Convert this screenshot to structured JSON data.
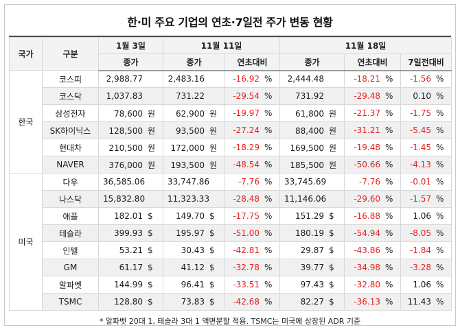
{
  "title": "한·미 주요 기업의 연초·7일전 주가 변동 현황",
  "footnote": "* 알파벳 20대 1, 테슬라 3대 1 액면분할 적용. TSMC는 미국에 상장된 ADR 기준",
  "colors": {
    "negative": "#e62020",
    "positive": "#1a1a1a"
  },
  "header": {
    "country": "국가",
    "category": "구분",
    "date1": "1월 3일",
    "date2": "11월 11일",
    "date3": "11월 18일",
    "close": "종가",
    "vs_year_start": "연초대비",
    "vs_7days_ago": "7일전대비",
    "percent_sign": "%"
  },
  "chart_data": {
    "type": "table",
    "title": "한·미 주요 기업의 연초·7일전 주가 변동 현황",
    "columns": [
      "국가",
      "구분",
      "1월 3일 종가",
      "11월 11일 종가",
      "11월 11일 연초대비(%)",
      "11월 18일 종가",
      "11월 18일 연초대비(%)",
      "11월 18일 7일전대비(%)"
    ],
    "groups": [
      {
        "country": "한국",
        "rows": [
          {
            "name": "코스피",
            "unit": "",
            "p1": "2,988.77",
            "p2": "2,483.16",
            "ytd2": "-16.92",
            "p3": "2,444.48",
            "ytd3": "-18.21",
            "d7": "-1.56"
          },
          {
            "name": "코스닥",
            "unit": "",
            "p1": "1,037.83",
            "p2": "731.22",
            "ytd2": "-29.54",
            "p3": "731.92",
            "ytd3": "-29.48",
            "d7": "0.10"
          },
          {
            "name": "삼성전자",
            "unit": "원",
            "p1": "78,600",
            "p2": "62,900",
            "ytd2": "-19.97",
            "p3": "61,800",
            "ytd3": "-21.37",
            "d7": "-1.75"
          },
          {
            "name": "SK하이닉스",
            "unit": "원",
            "p1": "128,500",
            "p2": "93,500",
            "ytd2": "-27.24",
            "p3": "88,400",
            "ytd3": "-31.21",
            "d7": "-5.45"
          },
          {
            "name": "현대차",
            "unit": "원",
            "p1": "210,500",
            "p2": "172,000",
            "ytd2": "-18.29",
            "p3": "169,500",
            "ytd3": "-19.48",
            "d7": "-1.45"
          },
          {
            "name": "NAVER",
            "unit": "원",
            "p1": "376,000",
            "p2": "193,500",
            "ytd2": "-48.54",
            "p3": "185,500",
            "ytd3": "-50.66",
            "d7": "-4.13"
          }
        ]
      },
      {
        "country": "미국",
        "rows": [
          {
            "name": "다우",
            "unit": "",
            "p1": "36,585.06",
            "p2": "33,747.86",
            "ytd2": "-7.76",
            "p3": "33,745.69",
            "ytd3": "-7.76",
            "d7": "-0.01"
          },
          {
            "name": "나스닥",
            "unit": "",
            "p1": "15,832.80",
            "p2": "11,323.33",
            "ytd2": "-28.48",
            "p3": "11,146.06",
            "ytd3": "-29.60",
            "d7": "-1.57"
          },
          {
            "name": "애플",
            "unit": "$",
            "p1": "182.01",
            "p2": "149.70",
            "ytd2": "-17.75",
            "p3": "151.29",
            "ytd3": "-16.88",
            "d7": "1.06"
          },
          {
            "name": "테슬라",
            "unit": "$",
            "p1": "399.93",
            "p2": "195.97",
            "ytd2": "-51.00",
            "p3": "180.19",
            "ytd3": "-54.94",
            "d7": "-8.05"
          },
          {
            "name": "인텔",
            "unit": "$",
            "p1": "53.21",
            "p2": "30.43",
            "ytd2": "-42.81",
            "p3": "29.87",
            "ytd3": "-43.86",
            "d7": "-1.84"
          },
          {
            "name": "GM",
            "unit": "$",
            "p1": "61.17",
            "p2": "41.12",
            "ytd2": "-32.78",
            "p3": "39.77",
            "ytd3": "-34.98",
            "d7": "-3.28"
          },
          {
            "name": "알파벳",
            "unit": "$",
            "p1": "144.99",
            "p2": "96.41",
            "ytd2": "-33.51",
            "p3": "97.43",
            "ytd3": "-32.80",
            "d7": "1.06"
          },
          {
            "name": "TSMC",
            "unit": "$",
            "p1": "128.80",
            "p2": "73.83",
            "ytd2": "-42.68",
            "p3": "82.27",
            "ytd3": "-36.13",
            "d7": "11.43"
          }
        ]
      }
    ]
  }
}
